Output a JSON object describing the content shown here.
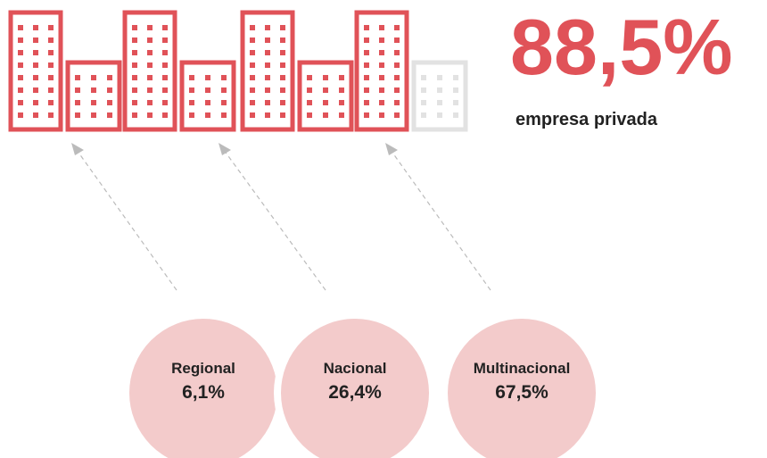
{
  "headline": {
    "value": "88,5%",
    "label": "empresa privada"
  },
  "segments": [
    {
      "label": "Regional",
      "value": "6,1%"
    },
    {
      "label": "Nacional",
      "value": "26,4%"
    },
    {
      "label": "Multinacional",
      "value": "67,5%"
    }
  ]
}
